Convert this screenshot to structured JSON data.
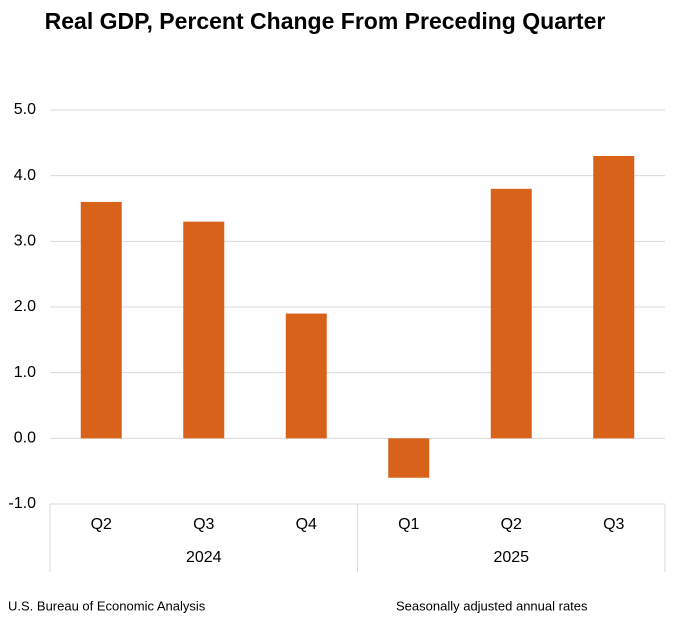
{
  "chart_data": {
    "type": "bar",
    "title": "Real GDP, Percent Change From Preceding Quarter",
    "groups": [
      {
        "label": "2024",
        "categories": [
          "Q2",
          "Q3",
          "Q4"
        ],
        "values": [
          3.6,
          3.3,
          1.9
        ]
      },
      {
        "label": "2025",
        "categories": [
          "Q1",
          "Q2",
          "Q3"
        ],
        "values": [
          -0.6,
          3.8,
          4.3
        ]
      }
    ],
    "color": "#d9621b",
    "ylim": [
      -1,
      5
    ],
    "yticks": [
      {
        "value": -1,
        "label": "-1.0"
      },
      {
        "value": 0,
        "label": "0.0"
      },
      {
        "value": 1,
        "label": "1.0"
      },
      {
        "value": 2,
        "label": "2.0"
      },
      {
        "value": 3,
        "label": "3.0"
      },
      {
        "value": 4,
        "label": "4.0"
      },
      {
        "value": 5,
        "label": "5.0"
      }
    ],
    "grid": true,
    "source": "U.S. Bureau of Economic Analysis",
    "note": "Seasonally adjusted annual rates"
  }
}
